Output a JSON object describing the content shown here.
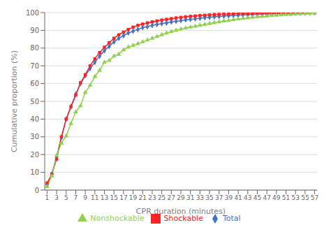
{
  "chart_data": {
    "type": "line",
    "title": "",
    "xlabel": "CPR duration (minutes)",
    "ylabel": "Cumulative proportion (%)",
    "xlim": [
      0.5,
      57.5
    ],
    "ylim": [
      0,
      100
    ],
    "xticks": [
      1,
      3,
      5,
      7,
      9,
      11,
      13,
      15,
      17,
      19,
      21,
      23,
      25,
      27,
      29,
      31,
      33,
      35,
      37,
      39,
      41,
      43,
      45,
      47,
      49,
      51,
      53,
      55,
      57
    ],
    "yticks": [
      0,
      10,
      20,
      30,
      40,
      50,
      60,
      70,
      80,
      90,
      100
    ],
    "grid": true,
    "legend": "bottom",
    "x": [
      1,
      2,
      3,
      4,
      5,
      6,
      7,
      8,
      9,
      10,
      11,
      12,
      13,
      14,
      15,
      16,
      17,
      18,
      19,
      20,
      21,
      22,
      23,
      24,
      25,
      26,
      27,
      28,
      29,
      30,
      31,
      32,
      33,
      34,
      35,
      36,
      37,
      38,
      39,
      40,
      41,
      42,
      43,
      44,
      45,
      46,
      47,
      48,
      49,
      50,
      51,
      52,
      53,
      54,
      55,
      56,
      57
    ],
    "series": [
      {
        "name": "Total",
        "color": "#4472C4",
        "marker": "diamond",
        "values": [
          3.0,
          9.0,
          19.0,
          29.5,
          40.0,
          47.0,
          54.0,
          60.0,
          64.5,
          68.5,
          72.0,
          75.5,
          78.5,
          81.0,
          83.5,
          85.5,
          87.0,
          88.5,
          89.5,
          90.5,
          91.5,
          92.0,
          92.8,
          93.3,
          93.8,
          94.2,
          94.7,
          95.1,
          95.5,
          95.9,
          96.2,
          96.5,
          96.8,
          97.1,
          97.3,
          97.6,
          97.8,
          98.0,
          98.2,
          98.4,
          98.5,
          98.7,
          98.8,
          98.9,
          99.0,
          99.1,
          99.2,
          99.3,
          99.4,
          99.5,
          99.6,
          99.6,
          99.7,
          99.8,
          99.8,
          99.9,
          100.0
        ]
      },
      {
        "name": "Shockable",
        "color": "#FF2222",
        "marker": "square",
        "values": [
          4.0,
          9.0,
          17.5,
          30.0,
          40.0,
          47.0,
          53.5,
          60.5,
          65.0,
          70.0,
          74.0,
          77.5,
          80.5,
          83.0,
          85.5,
          87.5,
          89.0,
          90.5,
          91.8,
          92.8,
          93.5,
          94.2,
          94.8,
          95.3,
          95.8,
          96.2,
          96.6,
          97.0,
          97.3,
          97.6,
          97.9,
          98.1,
          98.3,
          98.5,
          98.7,
          98.9,
          99.0,
          99.1,
          99.2,
          99.4,
          99.5,
          99.5,
          99.6,
          99.7,
          99.7,
          99.8,
          99.8,
          99.9,
          99.9,
          99.9,
          100.0,
          100.0,
          100.0,
          100.0,
          100.0,
          100.0,
          100.0
        ]
      },
      {
        "name": "Nonshockable",
        "color": "#92D050",
        "marker": "triangle",
        "values": [
          2.0,
          8.0,
          19.5,
          26.5,
          30.5,
          37.5,
          44.0,
          47.5,
          55.0,
          59.0,
          64.0,
          67.5,
          72.0,
          73.0,
          75.5,
          76.5,
          79.0,
          80.5,
          81.5,
          82.5,
          83.5,
          84.5,
          85.5,
          86.5,
          87.5,
          88.5,
          89.3,
          90.0,
          90.7,
          91.3,
          91.8,
          92.3,
          92.8,
          93.3,
          93.8,
          94.3,
          94.8,
          95.2,
          95.6,
          96.0,
          96.4,
          96.7,
          97.0,
          97.3,
          97.6,
          97.8,
          98.0,
          98.3,
          98.5,
          98.7,
          98.9,
          99.0,
          99.2,
          99.3,
          99.5,
          99.6,
          99.8
        ]
      }
    ]
  }
}
